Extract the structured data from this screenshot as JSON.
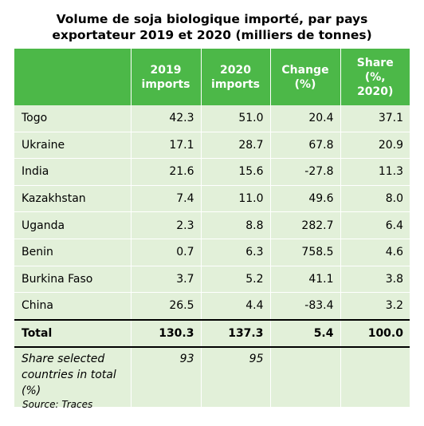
{
  "chart_data": {
    "type": "table",
    "title_line1": "Volume de soja biologique importé, par pays",
    "title_line2": "exportateur 2019 et 2020 (milliers de tonnes)",
    "columns": [
      "",
      "2019 imports",
      "2020 imports",
      "Change (%)",
      "Share (%, 2020)"
    ],
    "header": {
      "c1": [
        "2019",
        "imports"
      ],
      "c2": [
        "2020",
        "imports"
      ],
      "c3": [
        "Change",
        "(%)"
      ],
      "c4": [
        "Share",
        "(%,",
        "2020)"
      ]
    },
    "rows": [
      {
        "country": "Togo",
        "y2019": "42.3",
        "y2020": "51.0",
        "change": "20.4",
        "share": "37.1"
      },
      {
        "country": "Ukraine",
        "y2019": "17.1",
        "y2020": "28.7",
        "change": "67.8",
        "share": "20.9"
      },
      {
        "country": "India",
        "y2019": "21.6",
        "y2020": "15.6",
        "change": "-27.8",
        "share": "11.3"
      },
      {
        "country": "Kazakhstan",
        "y2019": "7.4",
        "y2020": "11.0",
        "change": "49.6",
        "share": "8.0"
      },
      {
        "country": "Uganda",
        "y2019": "2.3",
        "y2020": "8.8",
        "change": "282.7",
        "share": "6.4"
      },
      {
        "country": "Benin",
        "y2019": "0.7",
        "y2020": "6.3",
        "change": "758.5",
        "share": "4.6"
      },
      {
        "country": "Burkina Faso",
        "y2019": "3.7",
        "y2020": "5.2",
        "change": "41.1",
        "share": "3.8"
      },
      {
        "country": "China",
        "y2019": "26.5",
        "y2020": "4.4",
        "change": "-83.4",
        "share": "3.2"
      }
    ],
    "total": {
      "label": "Total",
      "y2019": "130.3",
      "y2020": "137.3",
      "change": "5.4",
      "share": "100.0"
    },
    "share_selected": {
      "label": "Share selected countries in total (%)",
      "y2019": "93",
      "y2020": "95"
    },
    "source": "Source: Traces",
    "colors": {
      "header": "#4cb848",
      "body": "#e2f0d9"
    }
  }
}
